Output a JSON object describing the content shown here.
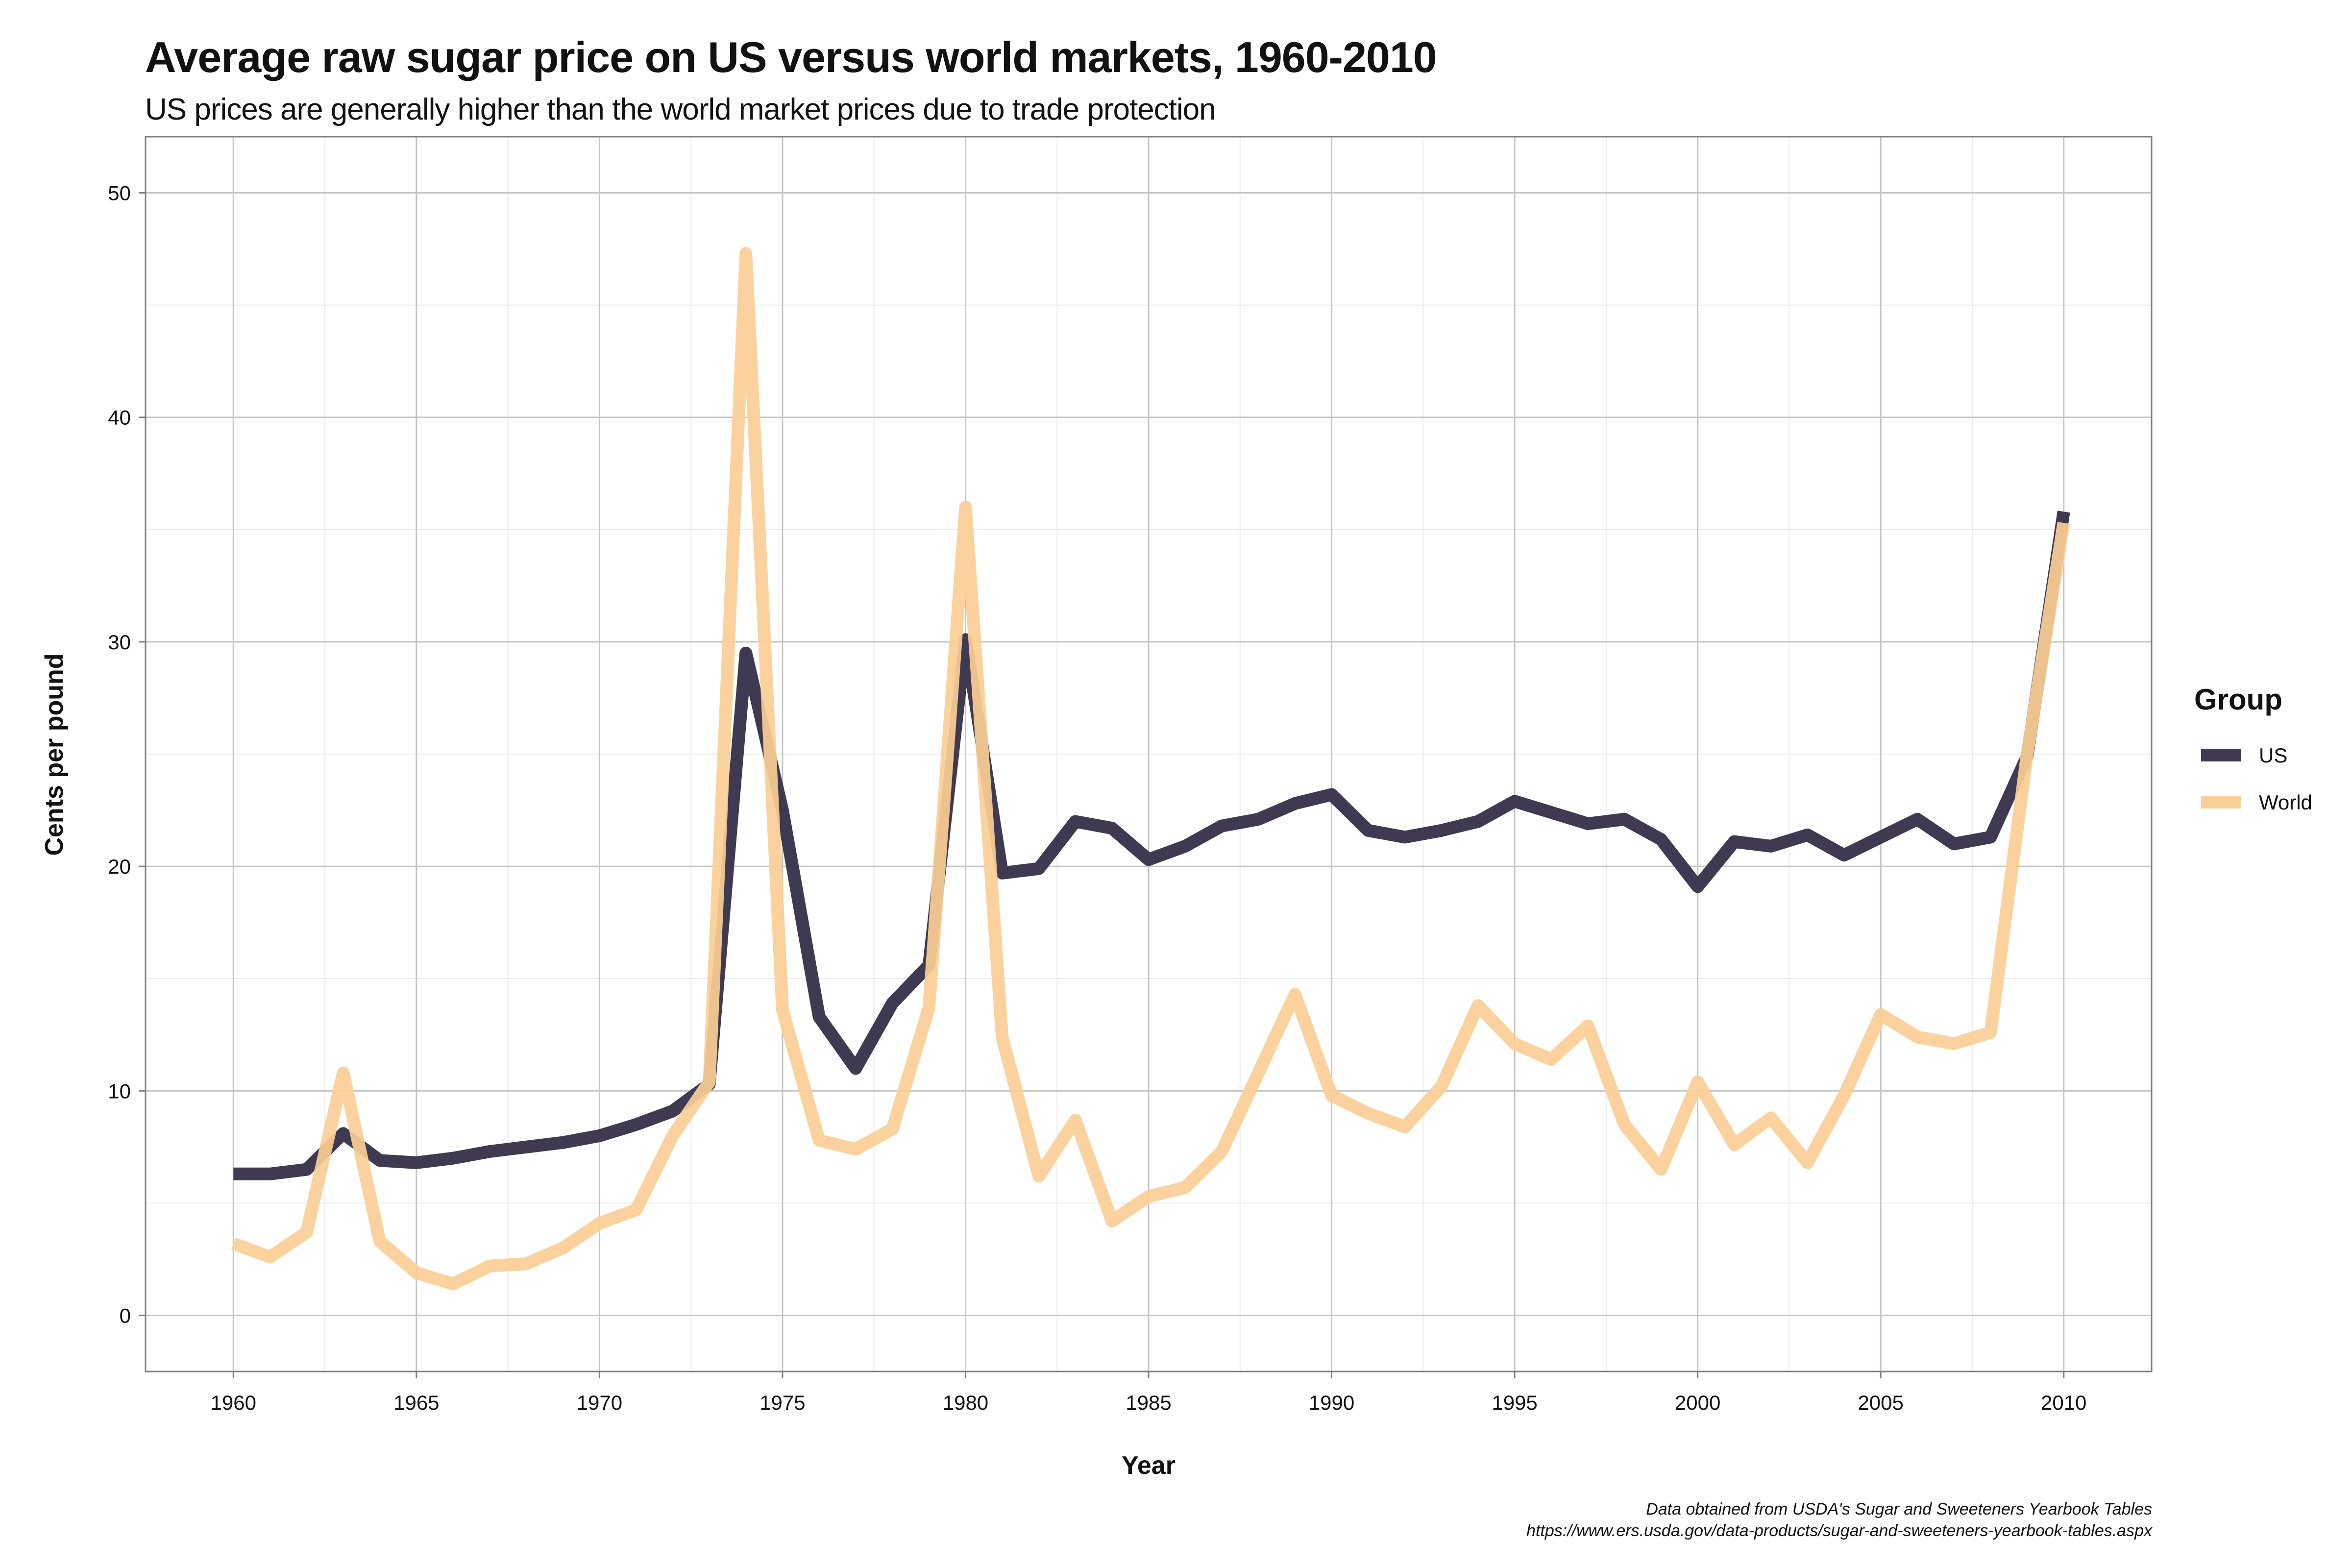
{
  "chart_data": {
    "type": "line",
    "title": "Average raw sugar price on US versus world markets, 1960-2010",
    "subtitle": "US prices are generally higher than the world market prices due to trade protection",
    "xlabel": "Year",
    "ylabel": "Cents per pound",
    "xlim": [
      1957.6,
      2012.4
    ],
    "ylim": [
      -2.5,
      52.5
    ],
    "xticks": [
      1960,
      1965,
      1970,
      1975,
      1980,
      1985,
      1990,
      1995,
      2000,
      2005,
      2010
    ],
    "yticks": [
      0,
      10,
      20,
      30,
      40,
      50
    ],
    "grid": true,
    "legend_title": "Group",
    "legend_position": "right",
    "x": [
      1960,
      1961,
      1962,
      1963,
      1964,
      1965,
      1966,
      1967,
      1968,
      1969,
      1970,
      1971,
      1972,
      1973,
      1974,
      1975,
      1976,
      1977,
      1978,
      1979,
      1980,
      1981,
      1982,
      1983,
      1984,
      1985,
      1986,
      1987,
      1988,
      1989,
      1990,
      1991,
      1992,
      1993,
      1994,
      1995,
      1996,
      1997,
      1998,
      1999,
      2000,
      2001,
      2002,
      2003,
      2004,
      2005,
      2006,
      2007,
      2008,
      2009,
      2010
    ],
    "series": [
      {
        "name": "US",
        "color": "#3f3a52",
        "values": [
          6.3,
          6.3,
          6.5,
          8.1,
          6.9,
          6.8,
          7.0,
          7.3,
          7.5,
          7.7,
          8.0,
          8.5,
          9.1,
          10.3,
          29.5,
          22.5,
          13.3,
          11.0,
          13.9,
          15.6,
          30.1,
          19.7,
          19.9,
          22.0,
          21.7,
          20.3,
          20.9,
          21.8,
          22.1,
          22.8,
          23.2,
          21.6,
          21.3,
          21.6,
          22.0,
          22.9,
          22.4,
          21.9,
          22.1,
          21.2,
          19.1,
          21.1,
          20.9,
          21.4,
          20.5,
          21.3,
          22.1,
          21.0,
          21.3,
          24.9,
          35.8
        ]
      },
      {
        "name": "World",
        "color": "#fbce95",
        "values": [
          3.2,
          2.6,
          3.7,
          10.8,
          3.3,
          1.9,
          1.4,
          2.2,
          2.3,
          3.0,
          4.1,
          4.7,
          8.0,
          10.4,
          47.3,
          13.6,
          7.8,
          7.4,
          8.3,
          13.7,
          36.0,
          12.4,
          6.2,
          8.7,
          4.2,
          5.3,
          5.7,
          7.3,
          10.8,
          14.3,
          9.8,
          9.0,
          8.4,
          10.2,
          13.8,
          12.1,
          11.4,
          12.9,
          8.5,
          6.5,
          10.4,
          7.6,
          8.8,
          6.8,
          9.8,
          13.4,
          12.4,
          12.1,
          12.6,
          25.0,
          35.3
        ]
      }
    ]
  },
  "caption": {
    "line1": "Data obtained from USDA's Sugar and Sweeteners Yearbook Tables",
    "line2": "https://www.ers.usda.gov/data-products/sugar-and-sweeteners-yearbook-tables.aspx"
  }
}
